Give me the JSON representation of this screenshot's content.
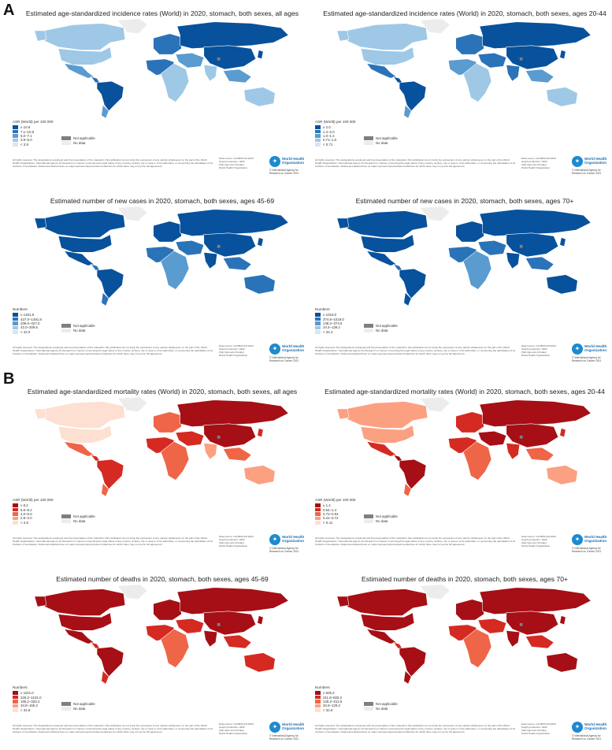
{
  "sections": [
    {
      "letter": "A",
      "panels": [
        {
          "title": "Estimated age-standardized incidence rates (World) in 2020, stomach, both sexes, all ages",
          "legend_title": "ASR (World) per 100 000",
          "bins": [
            "≥ 10.8",
            "7.1–10.8",
            "5.0–7.1",
            "3.9–5.0",
            "< 3.9"
          ]
        },
        {
          "title": "Estimated age-standardized incidence rates (World) in 2020, stomach, both sexes, ages 20-44",
          "legend_title": "ASR (World) per 100 000",
          "bins": [
            "≥ 2.0",
            "1.4–2.0",
            "1.0–1.4",
            "0.71–1.0",
            "< 0.71"
          ]
        },
        {
          "title": "Estimated number of new cases in 2020, stomach, both sexes, ages 45-69",
          "legend_title": "Numbers",
          "bins": [
            "≥ 1491.8",
            "427.0–1491.8",
            "208.6–427.0",
            "42.0–208.6",
            "< 42.0"
          ]
        },
        {
          "title": "Estimated number of new cases in 2020, stomach, both sexes, ages 70+",
          "legend_title": "Numbers",
          "bins": [
            "≥ 1019.0",
            "374.6–1019.0",
            "138.2–374.6",
            "34.4–138.2",
            "< 34.4"
          ]
        }
      ]
    },
    {
      "letter": "B",
      "panels": [
        {
          "title": "Estimated age-standardized mortality rates (World) in 2020, stomach, both sexes, all ages",
          "legend_title": "ASR (World) per 100 000",
          "bins": [
            "≥ 8.2",
            "5.6–8.2",
            "4.0–5.6",
            "2.8–4.0",
            "< 2.8"
          ]
        },
        {
          "title": "Estimated age-standardized mortality rates (World) in 2020, stomach, both sexes, ages 20-44",
          "legend_title": "ASR (World) per 100 000",
          "bins": [
            "≥ 1.4",
            "0.94–1.4",
            "0.72–0.94",
            "0.41–0.72",
            "< 0.41"
          ]
        },
        {
          "title": "Estimated number of deaths in 2020, stomach, both sexes, ages 45-69",
          "legend_title": "Numbers",
          "bins": [
            "≥ 1101.0",
            "326.2–1101.0",
            "165.2–326.2",
            "34.8–165.2",
            "< 34.8"
          ]
        },
        {
          "title": "Estimated number of deaths in 2020, stomach, both sexes, ages 70+",
          "legend_title": "Numbers",
          "bins": [
            "≥ 825.2",
            "311.8–825.2",
            "129.2–311.8",
            "32.6–129.2",
            "< 32.6"
          ]
        }
      ]
    }
  ],
  "common": {
    "not_applicable": "Not applicable",
    "no_data": "No data",
    "disclaimer": "All rights reserved. The designations employed and the presentation of the material in this publication do not imply the expression of any opinion whatsoever on the part of the World Health Organization / International Agency for Research on Cancer concerning the legal status of any country, territory, city or area or of its authorities, or concerning the delimitation of its frontiers or boundaries. Dotted and dashed lines on maps represent approximate borderlines for which there may not yet be full agreement.",
    "source_lines": [
      "Data source: GLOBOCAN 2020",
      "Graph production: IARC",
      "(http://gco.iarc.fr/today)",
      "World Health Organization"
    ],
    "who_name": [
      "World Health",
      "Organization"
    ],
    "iarc_lines": [
      "© International Agency for",
      "Research on Cancer 2021"
    ]
  },
  "colors": {
    "blue": [
      "#08519c",
      "#2a73b8",
      "#5a9bd0",
      "#9ec8e6",
      "#d4e6f5"
    ],
    "red": [
      "#a50f15",
      "#d42a22",
      "#ef6548",
      "#fca082",
      "#fde0d2"
    ],
    "na": "#7f7f7f",
    "nodata": "#ececec"
  }
}
